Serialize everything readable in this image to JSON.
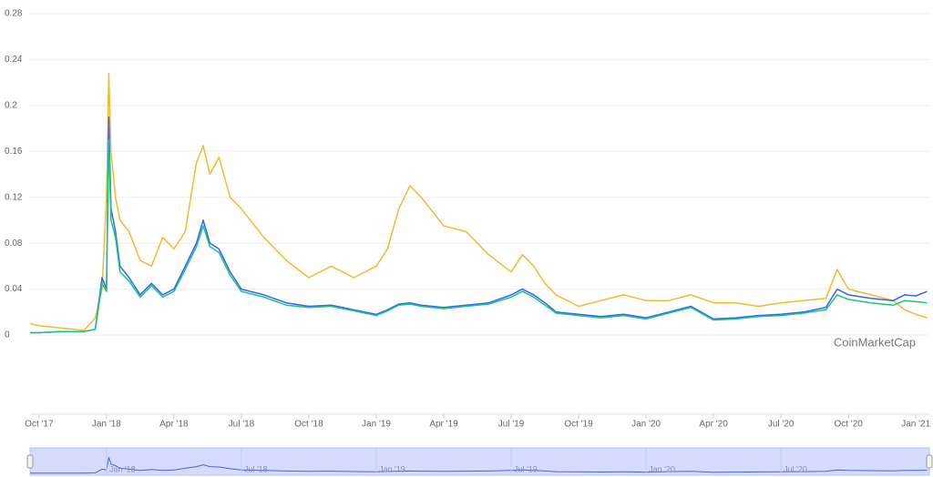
{
  "chart_data": {
    "type": "line",
    "watermark": "CoinMarketCap",
    "x": [
      -0.4,
      0,
      1,
      2,
      2.5,
      2.8,
      3.0,
      3.1,
      3.2,
      3.4,
      3.6,
      4,
      4.5,
      5,
      5.5,
      6,
      6.5,
      7,
      7.3,
      7.6,
      8,
      8.5,
      9,
      10,
      11,
      12,
      13,
      14,
      15,
      15.5,
      16,
      16.5,
      17,
      18,
      19,
      20,
      21,
      21.5,
      22,
      22.5,
      23,
      24,
      25,
      26,
      27,
      28,
      29,
      30,
      31,
      32,
      33,
      34,
      35,
      35.5,
      36,
      37,
      38,
      38.5,
      39,
      39.5
    ],
    "series": [
      {
        "color": "#f3ba2f",
        "values": [
          0.01,
          0.008,
          0.006,
          0.004,
          0.015,
          0.04,
          0.12,
          0.228,
          0.16,
          0.12,
          0.1,
          0.09,
          0.065,
          0.06,
          0.085,
          0.075,
          0.09,
          0.15,
          0.165,
          0.14,
          0.155,
          0.12,
          0.11,
          0.085,
          0.065,
          0.05,
          0.06,
          0.05,
          0.06,
          0.075,
          0.11,
          0.13,
          0.12,
          0.095,
          0.09,
          0.07,
          0.055,
          0.07,
          0.06,
          0.045,
          0.035,
          0.025,
          0.03,
          0.035,
          0.03,
          0.03,
          0.035,
          0.028,
          0.028,
          0.025,
          0.028,
          0.03,
          0.032,
          0.057,
          0.04,
          0.035,
          0.03,
          0.022,
          0.018,
          0.015
        ]
      },
      {
        "color": "#3861fb",
        "values": [
          0.002,
          0.002,
          0.003,
          0.003,
          0.005,
          0.05,
          0.04,
          0.19,
          0.11,
          0.09,
          0.06,
          0.05,
          0.035,
          0.045,
          0.035,
          0.04,
          0.06,
          0.08,
          0.1,
          0.08,
          0.075,
          0.055,
          0.04,
          0.035,
          0.028,
          0.025,
          0.026,
          0.022,
          0.018,
          0.022,
          0.027,
          0.028,
          0.026,
          0.024,
          0.026,
          0.028,
          0.035,
          0.04,
          0.035,
          0.028,
          0.02,
          0.018,
          0.016,
          0.018,
          0.015,
          0.02,
          0.025,
          0.014,
          0.015,
          0.017,
          0.018,
          0.02,
          0.024,
          0.04,
          0.035,
          0.032,
          0.03,
          0.035,
          0.034,
          0.038
        ]
      },
      {
        "color": "#16c784",
        "values": [
          0.002,
          0.002,
          0.003,
          0.003,
          0.005,
          0.045,
          0.038,
          0.17,
          0.1,
          0.085,
          0.055,
          0.047,
          0.033,
          0.043,
          0.033,
          0.038,
          0.057,
          0.077,
          0.095,
          0.077,
          0.072,
          0.052,
          0.038,
          0.033,
          0.026,
          0.024,
          0.025,
          0.021,
          0.017,
          0.021,
          0.026,
          0.027,
          0.025,
          0.023,
          0.025,
          0.027,
          0.033,
          0.038,
          0.033,
          0.026,
          0.019,
          0.017,
          0.015,
          0.017,
          0.014,
          0.019,
          0.024,
          0.013,
          0.014,
          0.016,
          0.017,
          0.019,
          0.022,
          0.035,
          0.031,
          0.028,
          0.026,
          0.03,
          0.029,
          0.028
        ]
      }
    ],
    "xlim": [
      -0.4,
      39.6
    ],
    "ylim": [
      0,
      0.28
    ],
    "yticks": [
      0,
      0.04,
      0.08,
      0.12,
      0.16,
      0.2,
      0.24,
      0.28
    ],
    "xticks": [
      {
        "value": 0,
        "label": "Oct '17"
      },
      {
        "value": 3,
        "label": "Jan '18"
      },
      {
        "value": 6,
        "label": "Apr '18"
      },
      {
        "value": 9,
        "label": "Jul '18"
      },
      {
        "value": 12,
        "label": "Oct '18"
      },
      {
        "value": 15,
        "label": "Jan '19"
      },
      {
        "value": 18,
        "label": "Apr '19"
      },
      {
        "value": 21,
        "label": "Jul '19"
      },
      {
        "value": 24,
        "label": "Oct '19"
      },
      {
        "value": 27,
        "label": "Jan '20"
      },
      {
        "value": 30,
        "label": "Apr '20"
      },
      {
        "value": 33,
        "label": "Jul '20"
      },
      {
        "value": 36,
        "label": "Oct '20"
      },
      {
        "value": 39,
        "label": "Jan '21"
      }
    ],
    "navigator_ticks": [
      {
        "value": 3,
        "label": "Jan '18"
      },
      {
        "value": 9,
        "label": "Jul '18"
      },
      {
        "value": 15,
        "label": "Jan '19"
      },
      {
        "value": 21,
        "label": "Jul '19"
      },
      {
        "value": 27,
        "label": "Jan '20"
      },
      {
        "value": 33,
        "label": "Jul '20"
      }
    ],
    "grid": true
  }
}
